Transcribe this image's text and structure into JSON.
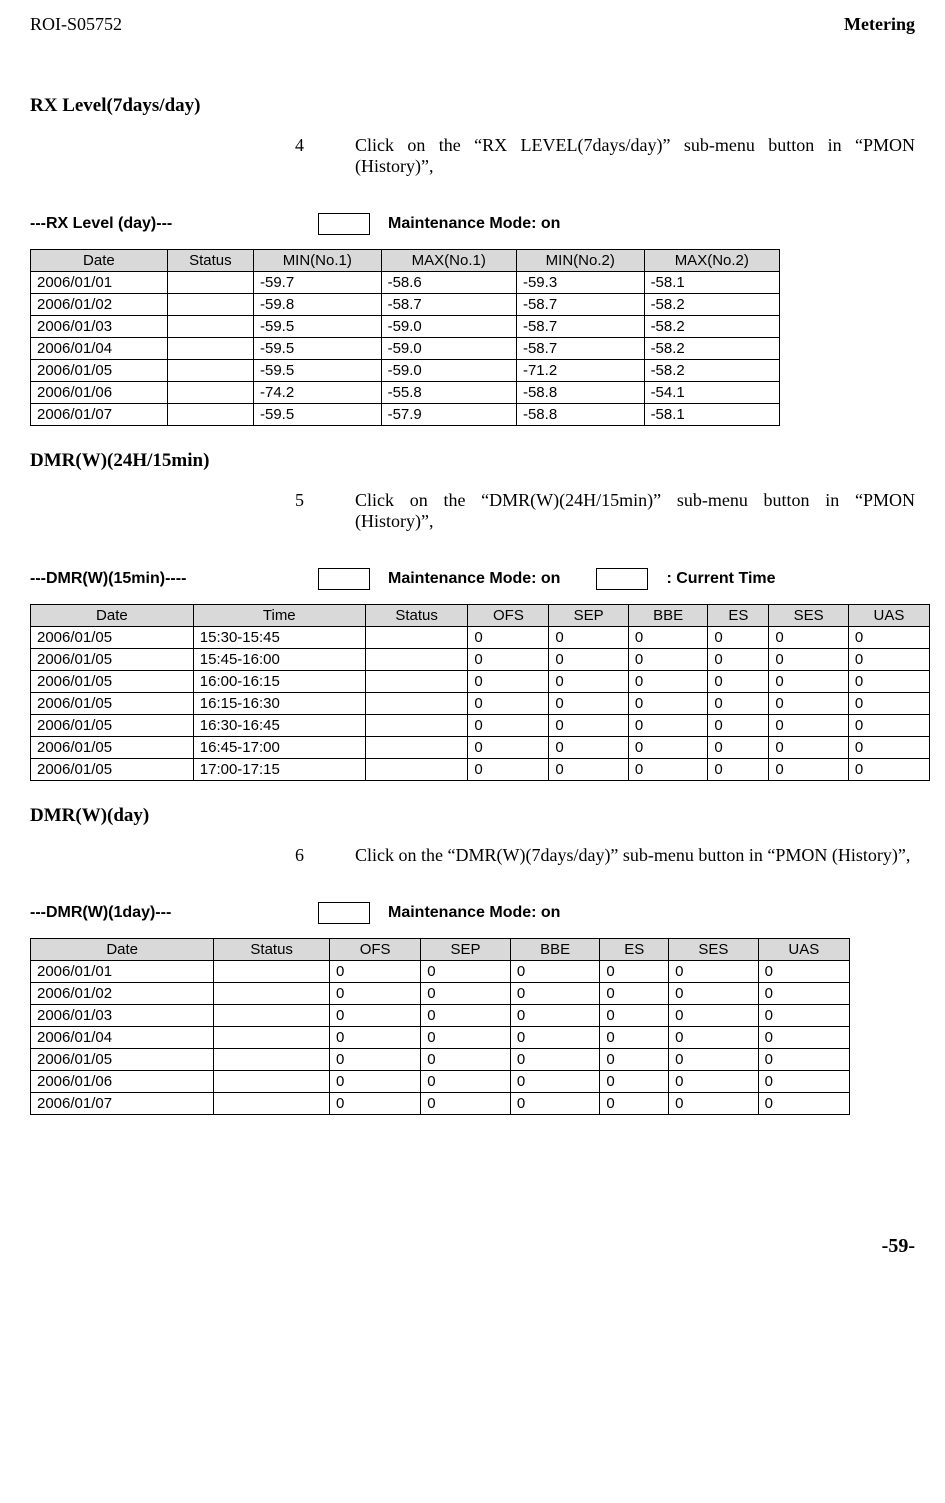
{
  "header": {
    "left": "ROI-S05752",
    "right": "Metering"
  },
  "colors": {
    "th_bg": "#d9d9d9",
    "border": "#000000",
    "text": "#000000",
    "bg": "#ffffff"
  },
  "rx": {
    "title": "RX Level(7days/day)",
    "step_n": "4",
    "step_t": "Click on the “RX LEVEL(7days/day)” sub-menu button in “PMON (History)”,",
    "mode_label": "---RX Level (day)---",
    "mode_on": "Maintenance Mode: on",
    "cols": [
      "Date",
      "Status",
      "MIN(No.1)",
      "MAX(No.1)",
      "MIN(No.2)",
      "MAX(No.2)"
    ],
    "rows": [
      [
        "2006/01/01",
        "",
        "-59.7",
        "-58.6",
        "-59.3",
        "-58.1"
      ],
      [
        "2006/01/02",
        "",
        "-59.8",
        "-58.7",
        "-58.7",
        "-58.2"
      ],
      [
        "2006/01/03",
        "",
        "-59.5",
        "-59.0",
        "-58.7",
        "-58.2"
      ],
      [
        "2006/01/04",
        "",
        "-59.5",
        "-59.0",
        "-58.7",
        "-58.2"
      ],
      [
        "2006/01/05",
        "",
        "-59.5",
        "-59.0",
        "-71.2",
        "-58.2"
      ],
      [
        "2006/01/06",
        "",
        "-74.2",
        "-55.8",
        "-58.8",
        "-54.1"
      ],
      [
        "2006/01/07",
        "",
        "-59.5",
        "-57.9",
        "-58.8",
        "-58.1"
      ]
    ]
  },
  "dmr15": {
    "title": "DMR(W)(24H/15min)",
    "step_n": "5",
    "step_t": "Click on the “DMR(W)(24H/15min)” sub-menu button in “PMON (History)”,",
    "mode_label": "---DMR(W)(15min)----",
    "mode_on": "Maintenance Mode: on",
    "cur": ": Current Time",
    "cols": [
      "Date",
      "Time",
      "Status",
      "OFS",
      "SEP",
      "BBE",
      "ES",
      "SES",
      "UAS"
    ],
    "rows": [
      [
        "2006/01/05",
        "15:30-15:45",
        "",
        "0",
        "0",
        "0",
        "0",
        "0",
        "0"
      ],
      [
        "2006/01/05",
        "15:45-16:00",
        "",
        "0",
        "0",
        "0",
        "0",
        "0",
        "0"
      ],
      [
        "2006/01/05",
        "16:00-16:15",
        "",
        "0",
        "0",
        "0",
        "0",
        "0",
        "0"
      ],
      [
        "2006/01/05",
        "16:15-16:30",
        "",
        "0",
        "0",
        "0",
        "0",
        "0",
        "0"
      ],
      [
        "2006/01/05",
        "16:30-16:45",
        "",
        "0",
        "0",
        "0",
        "0",
        "0",
        "0"
      ],
      [
        "2006/01/05",
        "16:45-17:00",
        "",
        "0",
        "0",
        "0",
        "0",
        "0",
        "0"
      ],
      [
        "2006/01/05",
        "17:00-17:15",
        "",
        "0",
        "0",
        "0",
        "0",
        "0",
        "0"
      ]
    ]
  },
  "dmrday": {
    "title": "DMR(W)(day)",
    "step_n": "6",
    "step_t": "Click on the “DMR(W)(7days/day)” sub-menu button in “PMON (History)”,",
    "mode_label": "---DMR(W)(1day)---",
    "mode_on": "Maintenance Mode: on",
    "cols": [
      "Date",
      "Status",
      "OFS",
      "SEP",
      "BBE",
      "ES",
      "SES",
      "UAS"
    ],
    "rows": [
      [
        "2006/01/01",
        "",
        "0",
        "0",
        "0",
        "0",
        "0",
        "0"
      ],
      [
        "2006/01/02",
        "",
        "0",
        "0",
        "0",
        "0",
        "0",
        "0"
      ],
      [
        "2006/01/03",
        "",
        "0",
        "0",
        "0",
        "0",
        "0",
        "0"
      ],
      [
        "2006/01/04",
        "",
        "0",
        "0",
        "0",
        "0",
        "0",
        "0"
      ],
      [
        "2006/01/05",
        "",
        "0",
        "0",
        "0",
        "0",
        "0",
        "0"
      ],
      [
        "2006/01/06",
        "",
        "0",
        "0",
        "0",
        "0",
        "0",
        "0"
      ],
      [
        "2006/01/07",
        "",
        "0",
        "0",
        "0",
        "0",
        "0",
        "0"
      ]
    ]
  },
  "footer": "-59-"
}
